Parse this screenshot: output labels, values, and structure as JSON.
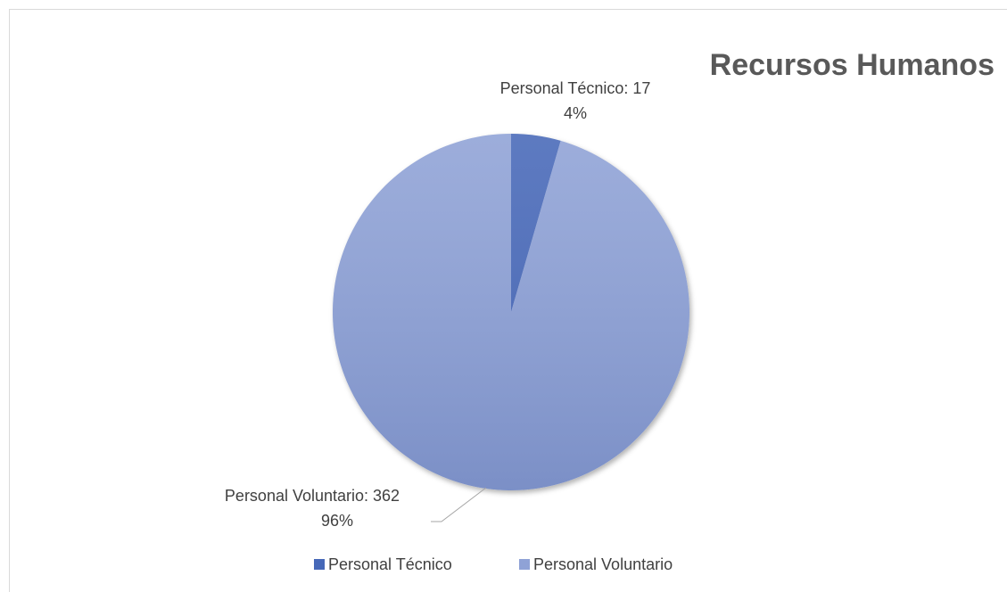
{
  "chart_data": {
    "type": "pie",
    "title": "Recursos Humanos",
    "categories": [
      "Personal Técnico",
      "Personal Voluntario"
    ],
    "values": [
      17,
      362
    ],
    "value_labels": [
      "Personal Técnico: 17",
      "Personal Voluntario:  362"
    ],
    "percent_labels": [
      "4%",
      "96%"
    ],
    "colors": [
      "#4668b8",
      "#8fa2d6"
    ],
    "legend": "bottom"
  }
}
